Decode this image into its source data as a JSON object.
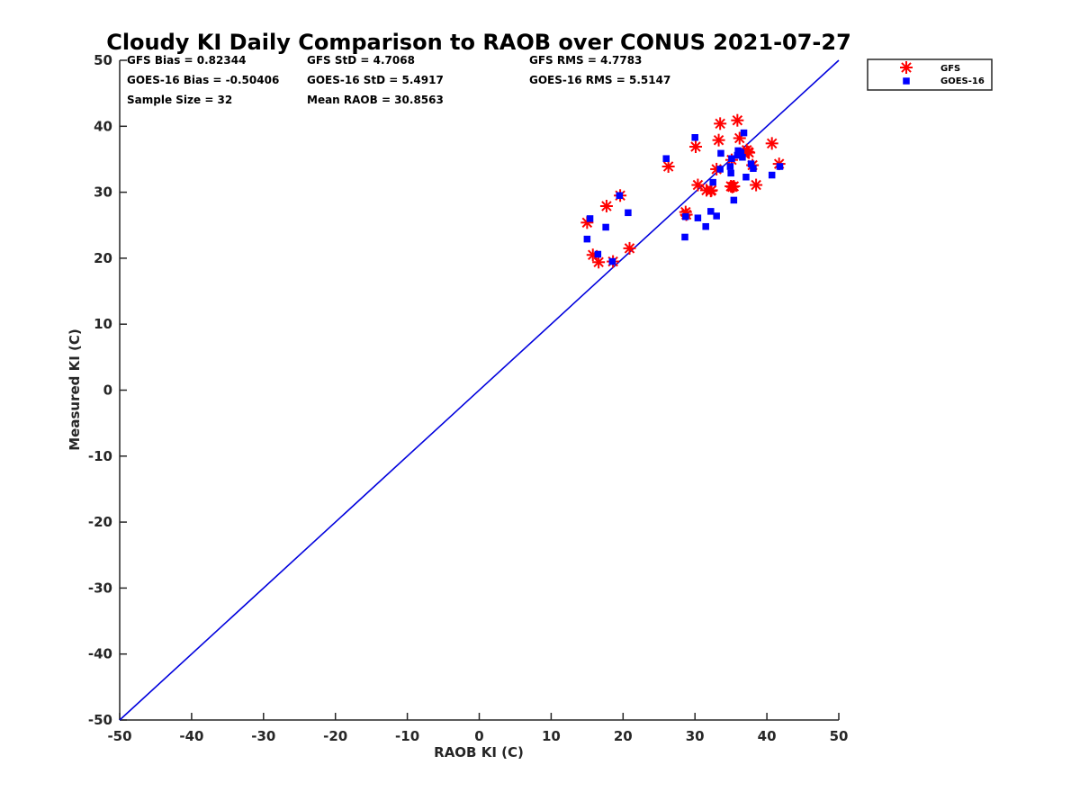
{
  "chart_data": {
    "type": "scatter",
    "title": "Cloudy KI Daily Comparison to RAOB over CONUS 2021-07-27",
    "xlabel": "RAOB KI (C)",
    "ylabel": "Measured KI (C)",
    "xlim": [
      -50,
      50
    ],
    "ylim": [
      -50,
      50
    ],
    "xticks": [
      "-50",
      "-40",
      "-30",
      "-20",
      "-10",
      "0",
      "10",
      "20",
      "30",
      "40",
      "50"
    ],
    "yticks": [
      "-50",
      "-40",
      "-30",
      "-20",
      "-10",
      "0",
      "10",
      "20",
      "30",
      "40",
      "50"
    ],
    "grid": false,
    "legend_position": "top-right-outside",
    "reference_line": {
      "x": [
        -50,
        50
      ],
      "y": [
        -50,
        50
      ],
      "color": "#0000dd"
    },
    "stats": {
      "gfs_bias": "GFS Bias = 0.82344",
      "gfs_std": "GFS StD = 4.7068",
      "gfs_rms": "GFS RMS = 4.7783",
      "goes_bias": "GOES-16 Bias = -0.50406",
      "goes_std": "GOES-16 StD = 5.4917",
      "goes_rms": "GOES-16 RMS = 5.5147",
      "sample_size": "Sample Size = 32",
      "mean_raob": "Mean RAOB = 30.8563"
    },
    "series": [
      {
        "name": "GFS",
        "marker": "asterisk",
        "color": "#ff0000",
        "points": [
          [
            15.0,
            25.4
          ],
          [
            15.8,
            20.5
          ],
          [
            16.6,
            19.4
          ],
          [
            17.7,
            27.9
          ],
          [
            18.6,
            19.5
          ],
          [
            19.6,
            29.5
          ],
          [
            20.9,
            21.5
          ],
          [
            26.3,
            33.9
          ],
          [
            28.7,
            27.0
          ],
          [
            28.8,
            26.6
          ],
          [
            30.1,
            36.9
          ],
          [
            30.4,
            31.1
          ],
          [
            31.6,
            30.3
          ],
          [
            32.2,
            30.2
          ],
          [
            32.3,
            30.3
          ],
          [
            33.0,
            33.5
          ],
          [
            33.3,
            37.9
          ],
          [
            33.5,
            40.4
          ],
          [
            35.0,
            30.9
          ],
          [
            35.1,
            34.9
          ],
          [
            35.2,
            30.8
          ],
          [
            35.4,
            30.9
          ],
          [
            35.9,
            40.9
          ],
          [
            36.2,
            38.2
          ],
          [
            36.8,
            35.9
          ],
          [
            37.2,
            36.4
          ],
          [
            37.5,
            36.0
          ],
          [
            38.0,
            34.1
          ],
          [
            38.5,
            31.1
          ],
          [
            40.7,
            37.4
          ],
          [
            41.7,
            34.3
          ],
          [
            37.4,
            36.1
          ]
        ]
      },
      {
        "name": "GOES-16",
        "marker": "square",
        "color": "#0000ff",
        "points": [
          [
            15.0,
            22.9
          ],
          [
            15.4,
            26.0
          ],
          [
            16.5,
            20.6
          ],
          [
            17.6,
            24.7
          ],
          [
            18.5,
            19.5
          ],
          [
            19.5,
            29.5
          ],
          [
            20.7,
            26.9
          ],
          [
            26.0,
            35.1
          ],
          [
            28.6,
            23.2
          ],
          [
            28.7,
            26.3
          ],
          [
            30.0,
            38.3
          ],
          [
            30.4,
            26.1
          ],
          [
            31.5,
            24.8
          ],
          [
            32.2,
            27.1
          ],
          [
            32.5,
            31.5
          ],
          [
            33.0,
            26.4
          ],
          [
            33.5,
            33.5
          ],
          [
            33.6,
            35.9
          ],
          [
            34.9,
            33.9
          ],
          [
            35.0,
            32.9
          ],
          [
            35.1,
            35.1
          ],
          [
            35.4,
            28.8
          ],
          [
            35.9,
            35.6
          ],
          [
            36.0,
            36.3
          ],
          [
            36.4,
            36.0
          ],
          [
            36.6,
            35.3
          ],
          [
            36.8,
            39.0
          ],
          [
            37.1,
            32.3
          ],
          [
            37.8,
            34.3
          ],
          [
            38.1,
            33.6
          ],
          [
            40.7,
            32.6
          ],
          [
            41.8,
            33.9
          ]
        ]
      }
    ]
  }
}
